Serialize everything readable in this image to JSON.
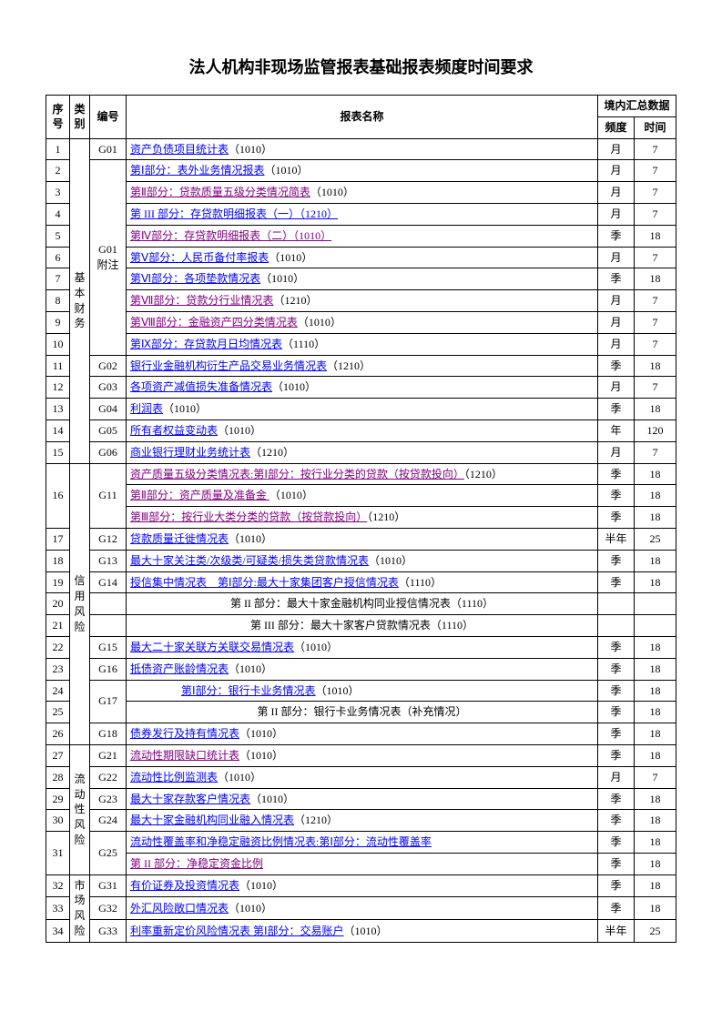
{
  "title": "法人机构非现场监管报表基础报表频度时间要求",
  "header": {
    "seq": "序号",
    "cat": "类别",
    "code": "编号",
    "name": "报表名称",
    "group": "境内汇总数据",
    "freq": "频度",
    "time": "时间"
  },
  "cats": {
    "c1": "基本财务",
    "c2": "信用风险",
    "c3": "流动性风险",
    "c4": "市场风险"
  },
  "codes": {
    "g01": "G01",
    "g01a": "G01\n附注",
    "g02": "G02",
    "g03": "G03",
    "g04": "G04",
    "g05": "G05",
    "g06": "G06",
    "g11": "G11",
    "g12": "G12",
    "g13": "G13",
    "g14": "G14",
    "g15": "G15",
    "g16": "G16",
    "g17": "G17",
    "g18": "G18",
    "g21": "G21",
    "g22": "G22",
    "g23": "G23",
    "g24": "G24",
    "g25": "G25",
    "g31": "G31",
    "g32": "G32",
    "g33": "G33"
  },
  "rows": {
    "r1": {
      "seq": "1",
      "link": "资产负债项目统计表",
      "suffix": "（1010）",
      "color": "blue",
      "freq": "月",
      "time": "7"
    },
    "r2": {
      "seq": "2",
      "link": "第Ⅰ部分：表外业务情况报表",
      "suffix": "（1010）",
      "color": "blue",
      "freq": "月",
      "time": "7"
    },
    "r3": {
      "seq": "3",
      "link": "第Ⅱ部分：贷款质量五级分类情况简表",
      "suffix": "（1010）",
      "color": "purple",
      "freq": "月",
      "time": "7"
    },
    "r4": {
      "seq": "4",
      "link": "第 III 部分：存贷款明细报表（一）（1210）",
      "suffix": "",
      "color": "blue",
      "freq": "月",
      "time": "7"
    },
    "r5": {
      "seq": "5",
      "link": "第Ⅳ部分：存贷款明细报表（二）（1010）",
      "suffix": "",
      "color": "purple",
      "freq": "季",
      "time": "18"
    },
    "r6": {
      "seq": "6",
      "link": "第Ⅴ部分：人民币备付率报表",
      "suffix": "（1010）",
      "color": "blue",
      "freq": "月",
      "time": "7"
    },
    "r7": {
      "seq": "7",
      "link": "第Ⅵ部分：各项垫款情况表",
      "suffix": "（1010）",
      "color": "blue",
      "freq": "季",
      "time": "18"
    },
    "r8": {
      "seq": "8",
      "link": "第Ⅶ部分：贷款分行业情况表",
      "suffix": "（1210）",
      "color": "purple",
      "freq": "月",
      "time": "7"
    },
    "r9": {
      "seq": "9",
      "link": "第Ⅷ部分：金融资产四分类情况表",
      "suffix": "（1010）",
      "color": "purple",
      "freq": "月",
      "time": "7"
    },
    "r10": {
      "seq": "10",
      "link": "第Ⅸ部分：存贷款月日均情况表",
      "suffix": "（1110）",
      "color": "blue",
      "freq": "月",
      "time": "7"
    },
    "r11": {
      "seq": "11",
      "link": "银行业金融机构衍生产品交易业务情况表",
      "suffix": "（1210）",
      "color": "blue",
      "freq": "季",
      "time": "18"
    },
    "r12": {
      "seq": "12",
      "link": "各项资产减值损失准备情况表",
      "suffix": "（1010）",
      "color": "blue",
      "freq": "月",
      "time": "7"
    },
    "r13": {
      "seq": "13",
      "link": "利润表",
      "suffix": "（1010）",
      "color": "blue",
      "freq": "季",
      "time": "18"
    },
    "r14": {
      "seq": "14",
      "link": "所有者权益变动表",
      "suffix": "（1010）",
      "color": "blue",
      "freq": "年",
      "time": "120"
    },
    "r15": {
      "seq": "15",
      "link": "商业银行理财业务统计表",
      "suffix": "（1210）",
      "color": "blue",
      "freq": "月",
      "time": "7"
    },
    "r16a": {
      "link": "资产质量五级分类情况表:第Ⅰ部分：按行业分类的贷款（按贷款投向）",
      "suffix": "（1210）",
      "color": "purple",
      "freq": "季",
      "time": "18"
    },
    "r16b": {
      "link": "第Ⅱ部分：资产质量及准备金 ",
      "suffix": "（1010）",
      "color": "purple",
      "freq": "季",
      "time": "18"
    },
    "r16c": {
      "link": "第Ⅲ部分：按行业大类分类的贷款（按贷款投向）",
      "suffix": "（1210）",
      "color": "purple",
      "freq": "季",
      "time": "18"
    },
    "r17": {
      "seq": "17",
      "link": "贷款质量迁徙情况表",
      "suffix": "（1010）",
      "color": "blue",
      "freq": "半年",
      "time": "25"
    },
    "r18": {
      "seq": "18",
      "link": "最大十家关注类/次级类/可疑类/损失类贷款情况表",
      "suffix": "（1010）",
      "color": "blue",
      "freq": "季",
      "time": "18"
    },
    "r19": {
      "seq": "19",
      "link": "授信集中情况表　第Ⅰ部分:最大十家集团客户授信情况表",
      "suffix": "（1110）",
      "color": "blue",
      "freq": "季",
      "time": "18"
    },
    "r20": {
      "seq": "20",
      "text": "第 II 部分：最大十家金融机构同业授信情况表（1110）"
    },
    "r21": {
      "seq": "21",
      "text": "第 III 部分：最大十家客户贷款情况表（1110）"
    },
    "r22": {
      "seq": "22",
      "link": "最大二十家关联方关联交易情况表",
      "suffix": "（1010）",
      "color": "blue",
      "freq": "季",
      "time": "18"
    },
    "r23": {
      "seq": "23",
      "link": "抵债资产账龄情况表",
      "suffix": "（1010）",
      "color": "blue",
      "freq": "季",
      "time": "18"
    },
    "r24": {
      "seq": "24",
      "link": "第Ⅰ部分：银行卡业务情况表",
      "suffix": "（1010）",
      "color": "blue",
      "indent": true,
      "freq": "季",
      "time": "18"
    },
    "r25": {
      "seq": "25",
      "text": "第 II 部分：银行卡业务情况表（补充情况）",
      "freq": "季",
      "time": "18"
    },
    "r26": {
      "seq": "26",
      "link": "债券发行及持有情况表",
      "suffix": "（1010）",
      "color": "blue",
      "freq": "季",
      "time": "18"
    },
    "r27": {
      "seq": "27",
      "link": "流动性期限缺口统计表",
      "suffix": "（1010）",
      "color": "purple",
      "freq": "季",
      "time": "18"
    },
    "r28": {
      "seq": "28",
      "link": "流动性比例监测表",
      "suffix": "（1010）",
      "color": "blue",
      "freq": "月",
      "time": "7"
    },
    "r29": {
      "seq": "29",
      "link": "最大十家存款客户情况表",
      "suffix": "（1010）",
      "color": "blue",
      "freq": "季",
      "time": "18"
    },
    "r30": {
      "seq": "30",
      "link": "最大十家金融机构同业融入情况表",
      "suffix": "（1210）",
      "color": "blue",
      "freq": "季",
      "time": "18"
    },
    "r31a": {
      "link": "流动性覆盖率和净稳定融资比例情况表:第Ⅰ部分：流动性覆盖率",
      "suffix": "",
      "color": "blue",
      "freq": "季",
      "time": "18"
    },
    "r31b": {
      "link": "第 II 部分：净稳定资金比例",
      "suffix": "",
      "color": "purple",
      "freq": "季",
      "time": "18"
    },
    "r32": {
      "seq": "32",
      "link": "有价证券及投资情况表",
      "suffix": "（1010）",
      "color": "blue",
      "freq": "季",
      "time": "18"
    },
    "r33": {
      "seq": "33",
      "link": "外汇风险敞口情况表",
      "suffix": "（1010）",
      "color": "blue",
      "freq": "季",
      "time": "18"
    },
    "r34": {
      "seq": "34",
      "link": "利率重新定价风险情况表 第Ⅰ部分：交易账户",
      "suffix": "（1010）",
      "color": "blue",
      "freq": "半年",
      "time": "25"
    }
  }
}
